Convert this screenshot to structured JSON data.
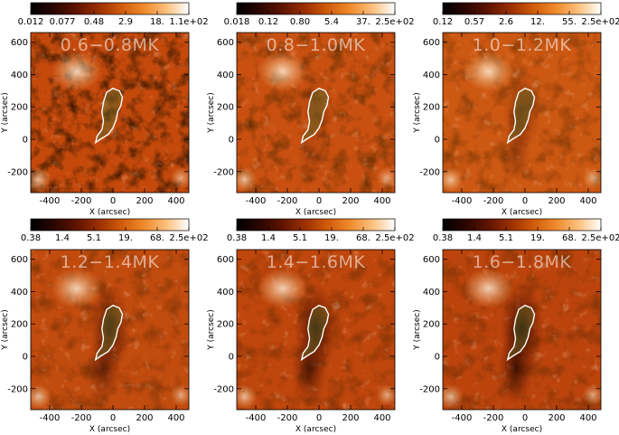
{
  "colormap": {
    "stops": [
      "#000000",
      "#2a0600",
      "#5e1300",
      "#9a2f02",
      "#cf5a0a",
      "#ef8a2c",
      "#fbc07c",
      "#ffffff"
    ]
  },
  "panels": [
    {
      "label": "0.6−0.8MK",
      "colorbar_ticks": [
        "0.012",
        "0.077",
        "0.48",
        "2.9",
        "18.",
        "1.1e+02"
      ]
    },
    {
      "label": "0.8−1.0MK",
      "colorbar_ticks": [
        "0.018",
        "0.12",
        "0.80",
        "5.4",
        "37.",
        "2.5e+02"
      ]
    },
    {
      "label": "1.0−1.2MK",
      "colorbar_ticks": [
        "0.12",
        "0.57",
        "2.6",
        "12.",
        "55.",
        "2.5e+02"
      ]
    },
    {
      "label": "1.2−1.4MK",
      "colorbar_ticks": [
        "0.38",
        "1.4",
        "5.1",
        "19.",
        "68.",
        "2.5e+02"
      ]
    },
    {
      "label": "1.4−1.6MK",
      "colorbar_ticks": [
        "0.38",
        "1.4",
        "5.1",
        "19.",
        "68.",
        "2.5e+02"
      ]
    },
    {
      "label": "1.6−1.8MK",
      "colorbar_ticks": [
        "0.38",
        "1.4",
        "5.1",
        "19.",
        "68.",
        "2.5e+02"
      ]
    }
  ],
  "x_axis": {
    "label": "X (arcsec)",
    "range": [
      -520,
      480
    ],
    "ticks": [
      -400,
      -200,
      0,
      200,
      400
    ]
  },
  "y_axis": {
    "label": "Y (arcsec)",
    "range": [
      -330,
      660
    ],
    "ticks": [
      -200,
      0,
      200,
      400,
      600
    ]
  },
  "contour_color": "#ffffff",
  "region_fill": "#5a6b2a"
}
